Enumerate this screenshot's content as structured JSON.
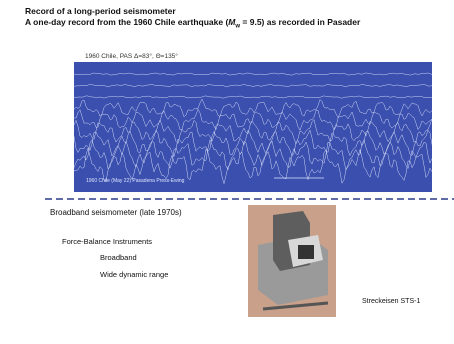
{
  "slide": {
    "title": "Record of a long-period seismometer",
    "subtitle": {
      "before": "A one-day record from the 1960 Chile earthquake (",
      "symbol": "M",
      "subscript": "w",
      "after": " = 9.5) as recorded in Pasader"
    },
    "record": {
      "caption": "1960 Chile, PAS Δ=83°, Θ=135°",
      "inner_label": "1960 Chile (May 22) Pasadena Press-Ewing"
    },
    "section": "Broadband seismometer (late 1970s)",
    "items": [
      "Force-Balance Instruments",
      "Broadband",
      "Wide dynamic range"
    ],
    "device_caption": "Streckeisen STS-1"
  }
}
